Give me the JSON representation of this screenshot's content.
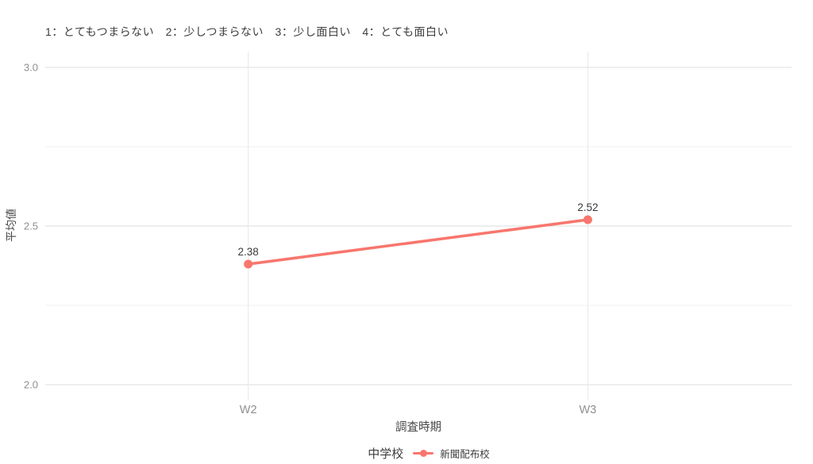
{
  "chart_data": {
    "type": "line",
    "annotation": "1：とてもつまらない　2：少しつまらない　3：少し面白い　4：とても面白い",
    "categories": [
      "W2",
      "W3"
    ],
    "series": [
      {
        "name": "新聞配布校",
        "values": [
          2.38,
          2.52
        ],
        "color": "#f8766d"
      }
    ],
    "point_labels": [
      "2.38",
      "2.52"
    ],
    "xlabel": "調査時期",
    "ylabel": "平均値",
    "ylim": [
      1.95,
      3.05
    ],
    "yticks_major": [
      3.0,
      2.5,
      2.0
    ],
    "ytick_labels": [
      "3.0",
      "2.5",
      "2.0"
    ],
    "yticks_minor": [
      2.75,
      2.25
    ],
    "grid": true,
    "legend": {
      "title": "中学校",
      "series_label": "新聞配布校",
      "position": "bottom"
    },
    "colors": {
      "series": "#f8766d",
      "grid_major": "#dedede",
      "grid_minor": "#f0f0f0",
      "grid_vertical": "#e8e8e8",
      "tick_label": "#8f8f8f",
      "axis_title": "#4a4a4a",
      "point_label": "#3a3a3a",
      "background": "#ffffff"
    }
  }
}
